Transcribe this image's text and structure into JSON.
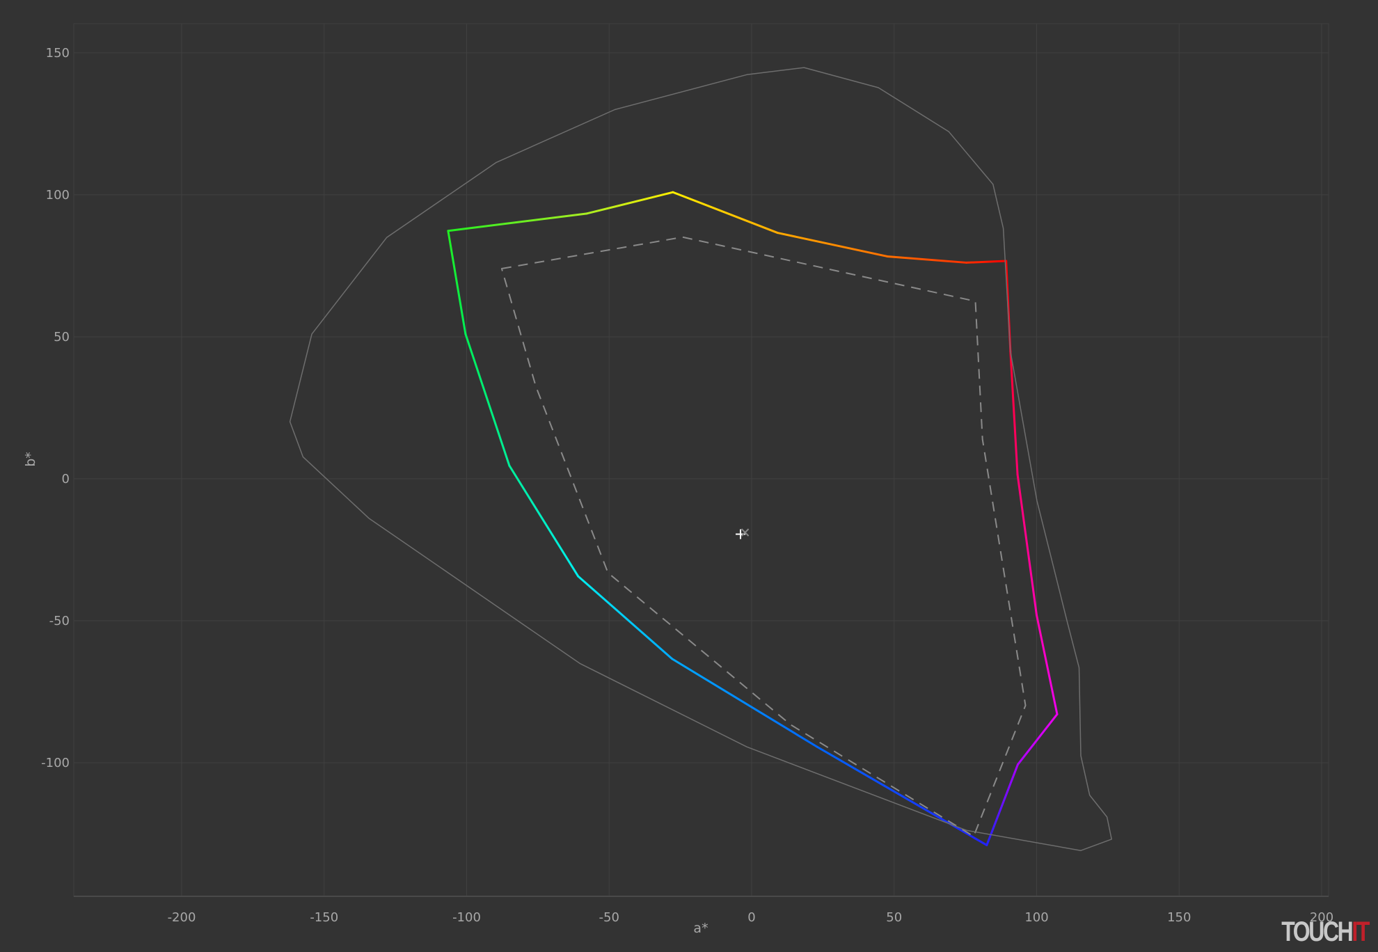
{
  "chart_data": {
    "type": "line",
    "xlabel": "a*",
    "ylabel": "b*",
    "xlim": [
      -238,
      202
    ],
    "ylim": [
      -147,
      160
    ],
    "xticks": [
      -200,
      -150,
      -100,
      -50,
      0,
      50,
      100,
      150,
      200
    ],
    "yticks": [
      150,
      100,
      50,
      0,
      -50,
      -100
    ],
    "grid": true,
    "background": "#333333",
    "series": [
      {
        "style": "colored-solid",
        "closed": true,
        "vertices": [
          {
            "a": -106.5,
            "b": 87.3,
            "color": "#22ee22"
          },
          {
            "a": -57.8,
            "b": 93.4,
            "color": "#aaee22"
          },
          {
            "a": -27.6,
            "b": 100.9,
            "color": "#ffee00"
          },
          {
            "a": 9.1,
            "b": 86.6,
            "color": "#ffaa00"
          },
          {
            "a": 47.6,
            "b": 78.3,
            "color": "#ff7000"
          },
          {
            "a": 75.4,
            "b": 76.1,
            "color": "#ff3000"
          },
          {
            "a": 89.3,
            "b": 76.7,
            "color": "#ff0000"
          },
          {
            "a": 90.8,
            "b": 44.9,
            "color": "#ff0030"
          },
          {
            "a": 93.3,
            "b": 1.5,
            "color": "#ff0070"
          },
          {
            "a": 100.0,
            "b": -48.0,
            "color": "#ff00b0"
          },
          {
            "a": 107.2,
            "b": -82.9,
            "color": "#ee00ee"
          },
          {
            "a": 93.4,
            "b": -100.6,
            "color": "#aa00ff"
          },
          {
            "a": 82.5,
            "b": -129.0,
            "color": "#2222ff"
          },
          {
            "a": 23.0,
            "b": -94.4,
            "color": "#0066ff"
          },
          {
            "a": -27.9,
            "b": -63.4,
            "color": "#00aaff"
          },
          {
            "a": -60.9,
            "b": -34.3,
            "color": "#00eeee"
          },
          {
            "a": -85.0,
            "b": 4.6,
            "color": "#00ee99"
          },
          {
            "a": -100.4,
            "b": 51.0,
            "color": "#00ee55"
          }
        ]
      },
      {
        "style": "dashed-gray",
        "closed": true,
        "color": "#8a8a8a",
        "vertices": [
          {
            "a": -87.7,
            "b": 74.0
          },
          {
            "a": -24.2,
            "b": 85.1
          },
          {
            "a": 78.5,
            "b": 62.5
          },
          {
            "a": 81.0,
            "b": 13.9
          },
          {
            "a": 96.1,
            "b": -79.8
          },
          {
            "a": 77.9,
            "b": -125.9
          },
          {
            "a": 13.7,
            "b": -86.6
          },
          {
            "a": -50.4,
            "b": -33.1
          },
          {
            "a": -75.7,
            "b": 32.5
          }
        ]
      },
      {
        "style": "thin-gray",
        "closed": true,
        "color": "#6e6e6e",
        "vertices": [
          {
            "a": 18.4,
            "b": 144.8
          },
          {
            "a": -1.7,
            "b": 142.3
          },
          {
            "a": -48.0,
            "b": 130.0
          },
          {
            "a": -89.6,
            "b": 111.4
          },
          {
            "a": -128.0,
            "b": 85.0
          },
          {
            "a": -154.3,
            "b": 51.0
          },
          {
            "a": -162.0,
            "b": 20.1
          },
          {
            "a": -157.4,
            "b": 7.7
          },
          {
            "a": -134.3,
            "b": -13.9
          },
          {
            "a": -60.3,
            "b": -65.0
          },
          {
            "a": -1.7,
            "b": -94.4
          },
          {
            "a": 75.4,
            "b": -123.8
          },
          {
            "a": 115.5,
            "b": -130.9
          },
          {
            "a": 126.3,
            "b": -126.9
          },
          {
            "a": 124.7,
            "b": -119.1
          },
          {
            "a": 118.6,
            "b": -111.4
          },
          {
            "a": 115.5,
            "b": -97.5
          },
          {
            "a": 114.9,
            "b": -66.5
          },
          {
            "a": 110.9,
            "b": -51.0
          },
          {
            "a": 100.1,
            "b": -7.7
          },
          {
            "a": 90.8,
            "b": 44.9
          },
          {
            "a": 88.3,
            "b": 88.2
          },
          {
            "a": 84.7,
            "b": 103.7
          },
          {
            "a": 69.2,
            "b": 122.2
          },
          {
            "a": 44.5,
            "b": 137.7
          }
        ]
      }
    ],
    "white_points": [
      {
        "a": -3.9,
        "b": -19.5,
        "marker": "plus",
        "color": "#ffffff"
      },
      {
        "a": -2.3,
        "b": -18.9,
        "marker": "x",
        "color": "#888888"
      }
    ]
  },
  "watermark": {
    "text_main": "TOUCH",
    "text_accent": "IT"
  }
}
